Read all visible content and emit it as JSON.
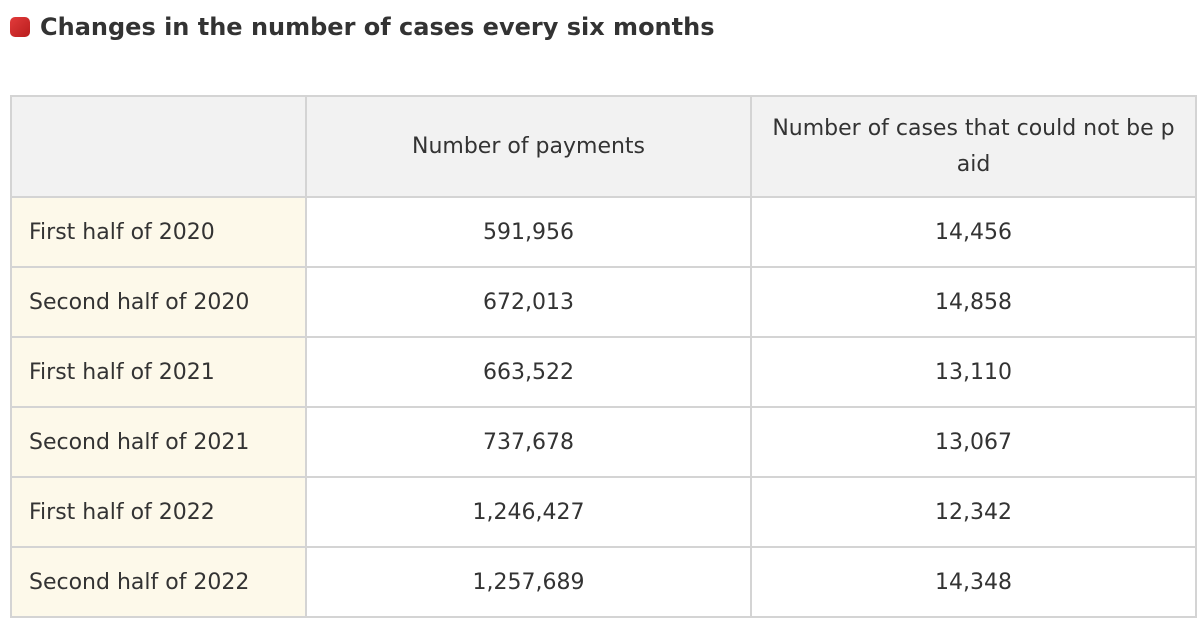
{
  "header": {
    "title": "Changes in the number of cases every six months"
  },
  "table": {
    "columns": [
      "Number of payments",
      "Number of cases that could not be paid"
    ],
    "rows": [
      [
        "First half of 2020",
        "591,956",
        "14,456"
      ],
      [
        "Second half of 2020",
        "672,013",
        "14,858"
      ],
      [
        "First half of 2021",
        "663,522",
        "13,110"
      ],
      [
        "Second half of 2021",
        "737,678",
        "13,067"
      ],
      [
        "First half of 2022",
        "1,246,427",
        "12,342"
      ],
      [
        "Second half of 2022",
        "1,257,689",
        "14,348"
      ]
    ]
  }
}
